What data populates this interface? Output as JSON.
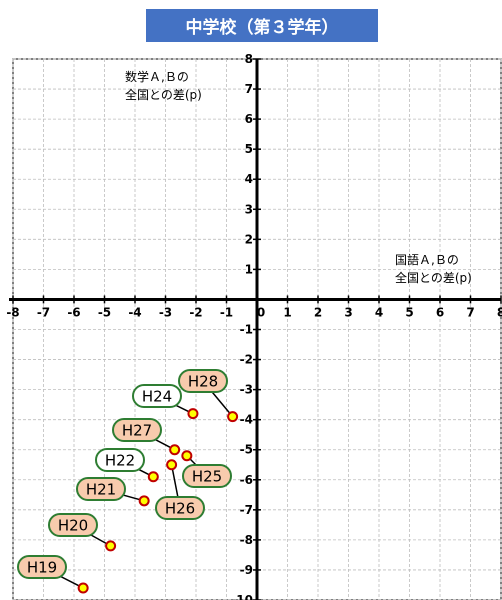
{
  "chart_data": {
    "type": "scatter",
    "title": "中学校（第３学年）",
    "xlabel_lines": [
      "国語Ａ,Ｂの",
      "全国との差(p)"
    ],
    "ylabel_lines": [
      "数学Ａ,Ｂの",
      "全国との差(p)"
    ],
    "xlim": [
      -8,
      8
    ],
    "ylim": [
      -10,
      8
    ],
    "x_ticks": [
      -8,
      -7,
      -6,
      -5,
      -4,
      -3,
      -2,
      -1,
      0,
      1,
      2,
      3,
      4,
      5,
      6,
      7,
      8
    ],
    "y_ticks": [
      8,
      7,
      6,
      5,
      4,
      3,
      2,
      1,
      0,
      -1,
      -2,
      -3,
      -4,
      -5,
      -6,
      -7,
      -8,
      -9,
      -10
    ],
    "grid": true,
    "points": [
      {
        "label": "H19",
        "x": -5.7,
        "y": -9.6,
        "label_fill": "#f8cbad"
      },
      {
        "label": "H20",
        "x": -4.8,
        "y": -8.2,
        "label_fill": "#f8cbad"
      },
      {
        "label": "H21",
        "x": -3.7,
        "y": -6.7,
        "label_fill": "#f8cbad"
      },
      {
        "label": "H22",
        "x": -3.4,
        "y": -5.9,
        "label_fill": "#ffffff"
      },
      {
        "label": "H24",
        "x": -2.1,
        "y": -3.8,
        "label_fill": "#ffffff"
      },
      {
        "label": "H25",
        "x": -2.3,
        "y": -5.2,
        "label_fill": "#f8cbad"
      },
      {
        "label": "H26",
        "x": -2.8,
        "y": -5.5,
        "label_fill": "#f8cbad"
      },
      {
        "label": "H27",
        "x": -2.7,
        "y": -5.0,
        "label_fill": "#f8cbad"
      },
      {
        "label": "H28",
        "x": -0.8,
        "y": -3.9,
        "label_fill": "#f8cbad"
      }
    ],
    "colors": {
      "point_fill": "#ffff00",
      "point_stroke": "#c00000",
      "label_border": "#2e7d32",
      "title_bg": "#4472c4",
      "title_text": "#ffffff"
    }
  }
}
